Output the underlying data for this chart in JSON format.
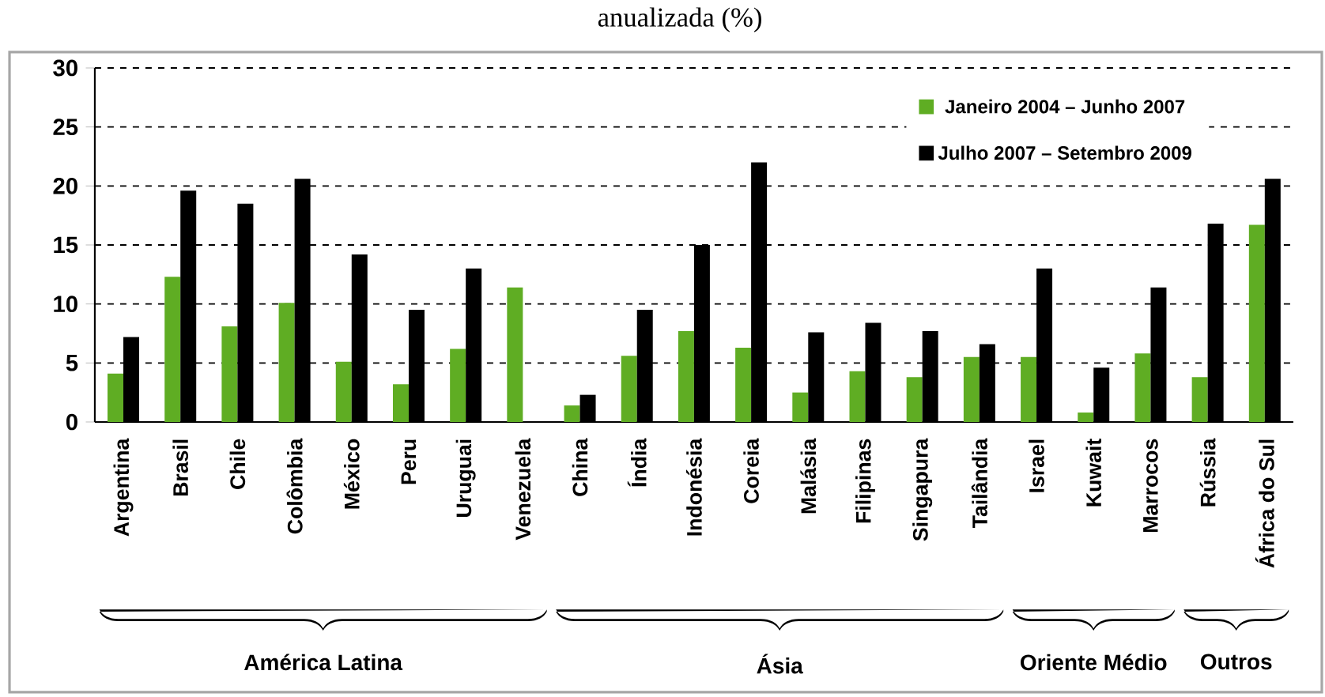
{
  "chart_data": {
    "type": "bar",
    "title": "anualizada (%)",
    "categories": [
      "Argentina",
      "Brasil",
      "Chile",
      "Colômbia",
      "México",
      "Peru",
      "Uruguai",
      "Venezuela",
      "China",
      "Índia",
      "Indonésia",
      "Coreia",
      "Malásia",
      "Filipinas",
      "Singapura",
      "Tailândia",
      "Israel",
      "Kuwait",
      "Marrocos",
      "Rússia",
      "África do Sul"
    ],
    "series": [
      {
        "name": "Janeiro 2004 – Junho 2007",
        "color": "#5fad23",
        "values": [
          4.1,
          12.3,
          8.1,
          10.1,
          5.1,
          3.2,
          6.2,
          11.4,
          1.4,
          5.6,
          7.7,
          6.3,
          2.5,
          4.3,
          3.8,
          5.5,
          5.5,
          0.8,
          5.8,
          3.8,
          16.7
        ]
      },
      {
        "name": "Julho 2007 – Setembro 2009",
        "color": "#000000",
        "values": [
          7.2,
          19.6,
          18.5,
          20.6,
          14.2,
          9.5,
          13.0,
          null,
          2.3,
          9.5,
          15.0,
          22.0,
          7.6,
          8.4,
          7.7,
          6.6,
          13.0,
          4.6,
          11.4,
          16.8,
          20.6
        ]
      }
    ],
    "ylim": [
      0,
      30
    ],
    "yticks": [
      0,
      5,
      10,
      15,
      20,
      25,
      30
    ],
    "grid": "y",
    "legend": "top right",
    "annotations": [
      "América Latina",
      "Ásia",
      "Oriente Médio",
      "Outros"
    ]
  }
}
